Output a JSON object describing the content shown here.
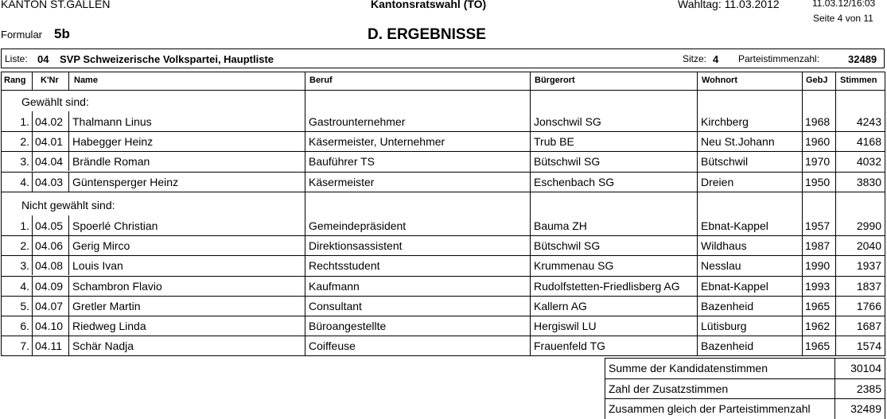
{
  "header": {
    "canton": "KANTON ST.GALLEN",
    "election": "Kantonsratswahl (TO)",
    "election_day": "Wahltag: 11.03.2012",
    "timestamp": "11.03.12/16:03",
    "page": "Seite 4 von 11",
    "formular_label": "Formular",
    "formular_number": "5b",
    "section_title": "D. ERGEBNISSE"
  },
  "list_info": {
    "label": "Liste:",
    "number": "04",
    "name": "SVP Schweizerische Volkspartei, Hauptliste",
    "seats_label": "Sitze:",
    "seats": "4",
    "party_votes_label": "Parteistimmenzahl:",
    "party_votes": "32489"
  },
  "columns": [
    "Rang",
    "K'Nr",
    "Name",
    "Beruf",
    "Bürgerort",
    "Wohnort",
    "GebJ",
    "Stimmen"
  ],
  "elected_label": "Gewählt sind:",
  "elected": [
    {
      "rank": "1.",
      "knr": "04.02",
      "name": "Thalmann Linus",
      "beruf": "Gastrounternehmer",
      "buergerort": "Jonschwil SG",
      "wohnort": "Kirchberg",
      "gebj": "1968",
      "stimmen": "4243"
    },
    {
      "rank": "2.",
      "knr": "04.01",
      "name": "Habegger  Heinz",
      "beruf": "Käsermeister, Unternehmer",
      "buergerort": "Trub BE",
      "wohnort": "Neu St.Johann",
      "gebj": "1960",
      "stimmen": "4168"
    },
    {
      "rank": "3.",
      "knr": "04.04",
      "name": "Brändle Roman",
      "beruf": "Bauführer TS",
      "buergerort": "Bütschwil SG",
      "wohnort": "Bütschwil",
      "gebj": "1970",
      "stimmen": "4032"
    },
    {
      "rank": "4.",
      "knr": "04.03",
      "name": "Güntensperger Heinz",
      "beruf": "Käsermeister",
      "buergerort": "Eschenbach SG",
      "wohnort": "Dreien",
      "gebj": "1950",
      "stimmen": "3830"
    }
  ],
  "not_elected_label": "Nicht gewählt sind:",
  "not_elected": [
    {
      "rank": "1.",
      "knr": "04.05",
      "name": "Spoerlé Christian",
      "beruf": "Gemeindepräsident",
      "buergerort": "Bauma ZH",
      "wohnort": "Ebnat-Kappel",
      "gebj": "1957",
      "stimmen": "2990"
    },
    {
      "rank": "2.",
      "knr": "04.06",
      "name": "Gerig Mirco",
      "beruf": "Direktionsassistent",
      "buergerort": "Bütschwil SG",
      "wohnort": "Wildhaus",
      "gebj": "1987",
      "stimmen": "2040"
    },
    {
      "rank": "3.",
      "knr": "04.08",
      "name": "Louis Ivan",
      "beruf": "Rechtsstudent",
      "buergerort": "Krummenau SG",
      "wohnort": "Nesslau",
      "gebj": "1990",
      "stimmen": "1937"
    },
    {
      "rank": "4.",
      "knr": "04.09",
      "name": "Schambron Flavio",
      "beruf": "Kaufmann",
      "buergerort": "Rudolfstetten-Friedlisberg AG",
      "wohnort": "Ebnat-Kappel",
      "gebj": "1993",
      "stimmen": "1837"
    },
    {
      "rank": "5.",
      "knr": "04.07",
      "name": "Gretler Martin",
      "beruf": "Consultant",
      "buergerort": "Kallern AG",
      "wohnort": "Bazenheid",
      "gebj": "1965",
      "stimmen": "1766"
    },
    {
      "rank": "6.",
      "knr": "04.10",
      "name": "Riedweg Linda",
      "beruf": "Büroangestellte",
      "buergerort": "Hergiswil LU",
      "wohnort": "Lütisburg",
      "gebj": "1962",
      "stimmen": "1687"
    },
    {
      "rank": "7.",
      "knr": "04.11",
      "name": "Schär Nadja",
      "beruf": "Coiffeuse",
      "buergerort": "Frauenfeld TG",
      "wohnort": "Bazenheid",
      "gebj": "1965",
      "stimmen": "1574"
    }
  ],
  "summary": [
    {
      "label": "Summe der Kandidatenstimmen",
      "value": "30104"
    },
    {
      "label": "Zahl der Zusatzstimmen",
      "value": "2385"
    },
    {
      "label": "Zusammen gleich der Parteistimmenzahl",
      "value": "32489"
    }
  ]
}
